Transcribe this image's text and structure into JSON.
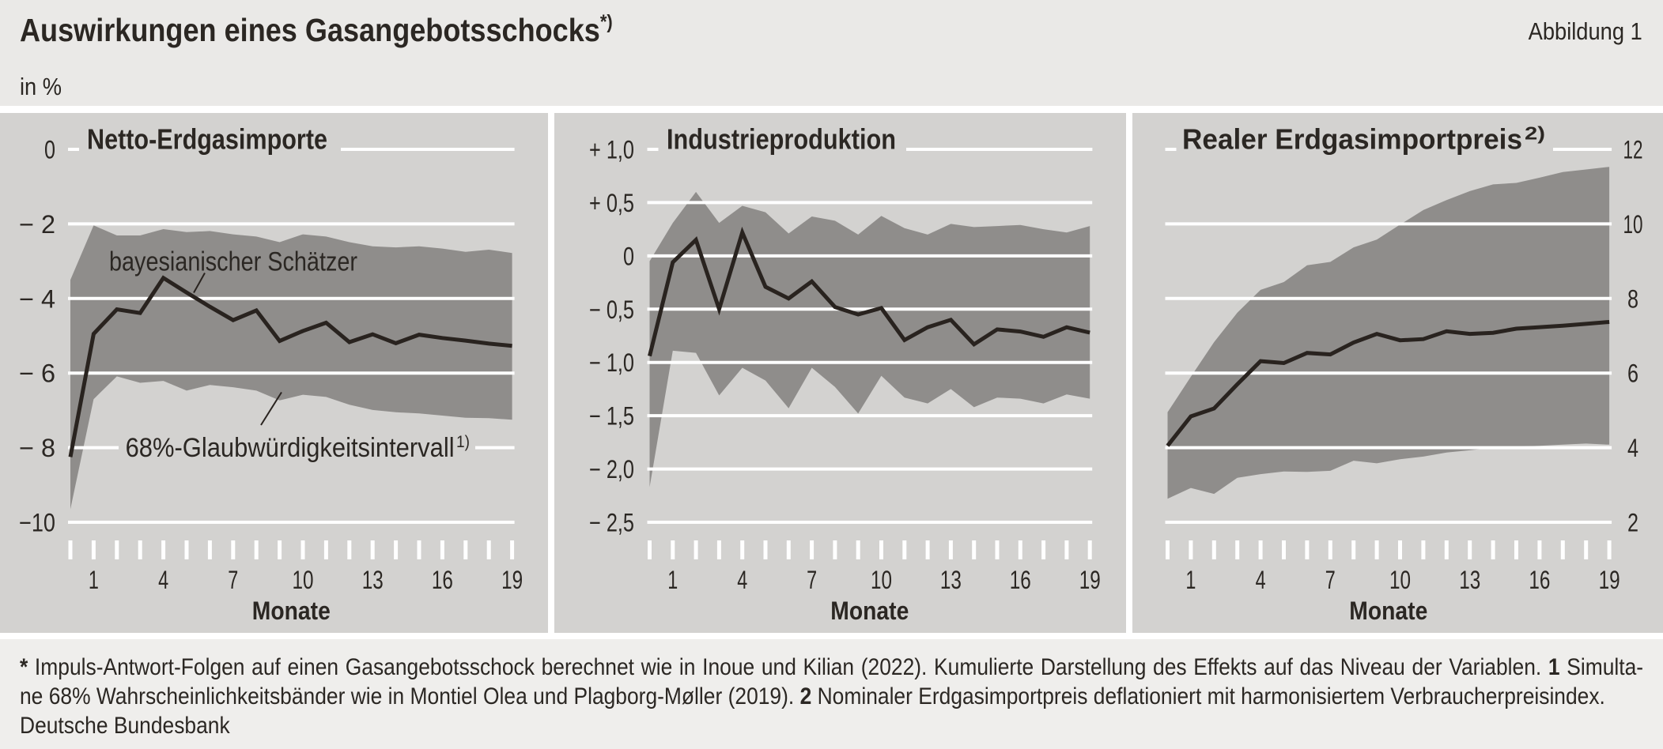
{
  "header": {
    "title": "Auswirkungen eines Gasangebotsschocks",
    "title_sup": "*)",
    "figure_label": "Abbildung 1",
    "unit": "in %"
  },
  "colors": {
    "header_bg": "#eae9e7",
    "panel_bg": "#d3d2d0",
    "band": "#8f8d8b",
    "line": "#29231f",
    "grid": "#ffffff",
    "text": "#2b2723",
    "footer_bg": "#efeeec",
    "separator_bg": "#ffffff"
  },
  "chart_data": [
    {
      "type": "line",
      "title": "Netto-Erdgasimporte",
      "title_sup": "",
      "xlabel": "Monate",
      "x": [
        0,
        1,
        2,
        3,
        4,
        5,
        6,
        7,
        8,
        9,
        10,
        11,
        12,
        13,
        14,
        15,
        16,
        17,
        18,
        19
      ],
      "x_tick_labels": [
        "1",
        "4",
        "7",
        "10",
        "13",
        "16",
        "19"
      ],
      "x_ticks_labeled_at": [
        1,
        4,
        7,
        10,
        13,
        16,
        19
      ],
      "ylim": [
        -10,
        0
      ],
      "y_ticks": [
        0,
        -2,
        -4,
        -6,
        -8,
        -10
      ],
      "y_tick_labels": [
        "0",
        "− 2",
        "− 4",
        "− 6",
        "− 8",
        "−10"
      ],
      "axis_side": "left",
      "grid": true,
      "series": [
        {
          "name": "bayesianischer Schätzer",
          "kind": "line",
          "values": [
            -8.25,
            -4.95,
            -4.29,
            -4.39,
            -3.45,
            -3.84,
            -4.22,
            -4.58,
            -4.32,
            -5.14,
            -4.87,
            -4.65,
            -5.17,
            -4.96,
            -5.2,
            -4.97,
            -5.06,
            -5.13,
            -5.21,
            -5.27
          ]
        },
        {
          "name": "68%-Glaubwürdigkeitsintervall",
          "name_sup": "1)",
          "kind": "band",
          "upper": [
            -3.5,
            -2.04,
            -2.31,
            -2.31,
            -2.14,
            -2.22,
            -2.19,
            -2.28,
            -2.34,
            -2.49,
            -2.28,
            -2.34,
            -2.49,
            -2.6,
            -2.63,
            -2.6,
            -2.66,
            -2.75,
            -2.69,
            -2.78
          ],
          "lower": [
            -9.65,
            -6.7,
            -6.09,
            -6.26,
            -6.21,
            -6.47,
            -6.32,
            -6.38,
            -6.47,
            -6.73,
            -6.58,
            -6.64,
            -6.85,
            -6.99,
            -7.05,
            -7.08,
            -7.14,
            -7.2,
            -7.21,
            -7.25
          ]
        }
      ],
      "annotations": [
        {
          "text": "bayesianischer Schätzer",
          "sup": ""
        },
        {
          "text": "68%-Glaubwürdigkeitsintervall",
          "sup": "1)"
        }
      ]
    },
    {
      "type": "line",
      "title": "Industrieproduktion",
      "title_sup": "",
      "xlabel": "Monate",
      "x": [
        0,
        1,
        2,
        3,
        4,
        5,
        6,
        7,
        8,
        9,
        10,
        11,
        12,
        13,
        14,
        15,
        16,
        17,
        18,
        19
      ],
      "x_tick_labels": [
        "1",
        "4",
        "7",
        "10",
        "13",
        "16",
        "19"
      ],
      "x_ticks_labeled_at": [
        1,
        4,
        7,
        10,
        13,
        16,
        19
      ],
      "ylim": [
        -2.5,
        1.0
      ],
      "y_ticks": [
        1.0,
        0.5,
        0,
        -0.5,
        -1.0,
        -1.5,
        -2.0,
        -2.5
      ],
      "y_tick_labels": [
        "+ 1,0",
        "+ 0,5",
        "0",
        "− 0,5",
        "− 1,0",
        "− 1,5",
        "− 2,0",
        "− 2,5"
      ],
      "axis_side": "left",
      "grid": true,
      "series": [
        {
          "name": "bayesianischer Schätzer",
          "kind": "line",
          "values": [
            -0.94,
            -0.06,
            0.15,
            -0.5,
            0.22,
            -0.29,
            -0.4,
            -0.24,
            -0.48,
            -0.55,
            -0.49,
            -0.79,
            -0.67,
            -0.6,
            -0.83,
            -0.69,
            -0.71,
            -0.76,
            -0.67,
            -0.72
          ]
        },
        {
          "name": "68%-Glaubwürdigkeitsintervall",
          "name_sup": "1)",
          "kind": "band",
          "upper": [
            -0.05,
            0.31,
            0.6,
            0.31,
            0.47,
            0.41,
            0.21,
            0.37,
            0.33,
            0.2,
            0.375,
            0.26,
            0.2,
            0.3,
            0.27,
            0.28,
            0.29,
            0.25,
            0.22,
            0.28
          ],
          "lower": [
            -2.17,
            -0.89,
            -0.91,
            -1.31,
            -1.05,
            -1.17,
            -1.43,
            -1.05,
            -1.23,
            -1.48,
            -1.125,
            -1.33,
            -1.385,
            -1.25,
            -1.42,
            -1.33,
            -1.34,
            -1.385,
            -1.3,
            -1.34
          ]
        }
      ],
      "annotations": []
    },
    {
      "type": "line",
      "title": "Realer Erdgasimportpreis",
      "title_sup": "2)",
      "xlabel": "Monate",
      "x": [
        0,
        1,
        2,
        3,
        4,
        5,
        6,
        7,
        8,
        9,
        10,
        11,
        12,
        13,
        14,
        15,
        16,
        17,
        18,
        19
      ],
      "x_tick_labels": [
        "1",
        "4",
        "7",
        "10",
        "13",
        "16",
        "19"
      ],
      "x_ticks_labeled_at": [
        1,
        4,
        7,
        10,
        13,
        16,
        19
      ],
      "ylim": [
        2,
        12
      ],
      "y_ticks": [
        12,
        10,
        8,
        6,
        4,
        2
      ],
      "y_tick_labels": [
        "12",
        "10",
        "8",
        "6",
        "4",
        "2"
      ],
      "axis_side": "right",
      "grid": true,
      "series": [
        {
          "name": "bayesianischer Schätzer",
          "kind": "line",
          "values": [
            4.05,
            4.84,
            5.05,
            5.7,
            6.32,
            6.27,
            6.54,
            6.5,
            6.82,
            7.05,
            6.88,
            6.91,
            7.12,
            7.05,
            7.08,
            7.19,
            7.23,
            7.27,
            7.32,
            7.37
          ]
        },
        {
          "name": "68%-Glaubwürdigkeitsintervall",
          "name_sup": "1)",
          "kind": "band",
          "upper": [
            4.95,
            5.9,
            6.83,
            7.62,
            8.23,
            8.44,
            8.89,
            8.98,
            9.37,
            9.58,
            9.98,
            10.37,
            10.64,
            10.88,
            11.06,
            11.1,
            11.24,
            11.39,
            11.46,
            11.53
          ],
          "lower": [
            2.63,
            2.92,
            2.76,
            3.19,
            3.29,
            3.36,
            3.35,
            3.38,
            3.65,
            3.58,
            3.69,
            3.76,
            3.87,
            3.93,
            4.0,
            4.03,
            4.05,
            4.08,
            4.11,
            4.08
          ]
        }
      ],
      "annotations": []
    }
  ],
  "footer": {
    "line1_runs": [
      {
        "text": "* ",
        "bold": true
      },
      {
        "text": "Impuls-Antwort-Folgen auf einen Gasangebotsschock berechnet wie in Inoue und Kilian (2022). Kumulierte Darstellung des Effekts auf das Niveau der Variablen. ",
        "bold": false
      },
      {
        "text": "1",
        "bold": true
      },
      {
        "text": " Simulta-",
        "bold": false
      }
    ],
    "line2_runs": [
      {
        "text": "ne 68% Wahrscheinlichkeitsbänder wie in Montiel Olea und Plagborg-Møller (2019). ",
        "bold": false
      },
      {
        "text": "2",
        "bold": true
      },
      {
        "text": " Nominaler Erdgasimportpreis deflationiert mit harmonisiertem Verbraucherpreisindex.",
        "bold": false
      }
    ],
    "source": "Deutsche Bundesbank"
  }
}
